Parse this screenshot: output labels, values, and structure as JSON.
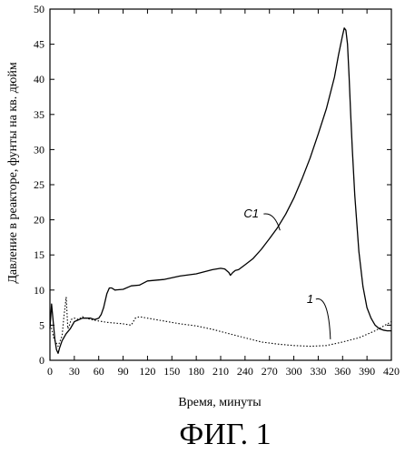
{
  "figure_label": "ФИГ. 1",
  "chart_data": {
    "type": "line",
    "title": "",
    "xlabel": "Время, минуты",
    "ylabel": "Давление в реакторе, фунты на кв. дюйм",
    "xlim": [
      0,
      420
    ],
    "ylim": [
      0,
      50
    ],
    "xticks": [
      0,
      30,
      60,
      90,
      120,
      150,
      180,
      210,
      240,
      270,
      300,
      330,
      360,
      390,
      420
    ],
    "yticks": [
      0,
      5,
      10,
      15,
      20,
      25,
      30,
      35,
      40,
      45,
      50
    ],
    "grid": false,
    "legend": "none",
    "series": [
      {
        "name": "C1",
        "style": "solid",
        "x": [
          0,
          2,
          4,
          6,
          8,
          10,
          12,
          15,
          20,
          25,
          30,
          40,
          50,
          55,
          60,
          63,
          66,
          70,
          73,
          76,
          80,
          90,
          100,
          110,
          120,
          140,
          160,
          180,
          200,
          210,
          215,
          220,
          222,
          225,
          228,
          232,
          240,
          250,
          260,
          270,
          280,
          290,
          300,
          310,
          320,
          330,
          340,
          350,
          355,
          360,
          362,
          364,
          366,
          368,
          370,
          372,
          375,
          380,
          385,
          390,
          395,
          400,
          405,
          410,
          415,
          420
        ],
        "y": [
          4.5,
          8.0,
          5.5,
          3.0,
          1.5,
          1.0,
          1.8,
          2.8,
          3.8,
          4.5,
          5.5,
          6.0,
          6.0,
          5.8,
          6.0,
          6.5,
          7.5,
          9.5,
          10.3,
          10.3,
          10.0,
          10.1,
          10.6,
          10.7,
          11.3,
          11.5,
          12.0,
          12.3,
          12.9,
          13.1,
          13.0,
          12.5,
          12.1,
          12.5,
          12.8,
          12.9,
          13.6,
          14.5,
          15.8,
          17.3,
          18.9,
          20.8,
          23.1,
          25.8,
          28.8,
          32.2,
          35.8,
          40.3,
          43.5,
          46.3,
          47.3,
          47.0,
          45.0,
          40.5,
          35.0,
          30.0,
          23.5,
          15.5,
          10.5,
          7.5,
          6.0,
          5.0,
          4.5,
          4.3,
          4.2,
          4.2
        ]
      },
      {
        "name": "1",
        "style": "dotted",
        "x": [
          0,
          5,
          10,
          15,
          17,
          20,
          22,
          24,
          26,
          30,
          35,
          40,
          50,
          60,
          70,
          80,
          90,
          100,
          105,
          110,
          120,
          140,
          160,
          180,
          200,
          220,
          240,
          260,
          280,
          300,
          320,
          340,
          360,
          380,
          400,
          420
        ],
        "y": [
          5.5,
          3.0,
          2.0,
          3.5,
          6.0,
          9.0,
          4.5,
          5.0,
          5.8,
          6.0,
          5.8,
          6.2,
          5.8,
          5.6,
          5.4,
          5.3,
          5.2,
          5.0,
          6.0,
          6.2,
          6.0,
          5.6,
          5.2,
          4.9,
          4.4,
          3.8,
          3.2,
          2.6,
          2.3,
          2.1,
          2.0,
          2.1,
          2.6,
          3.2,
          4.2,
          5.5
        ]
      }
    ],
    "annotations": [
      {
        "text": "C1",
        "series": "C1",
        "x": 283,
        "y": 18.5
      },
      {
        "text": "1",
        "series": "1",
        "x": 345,
        "y": 3.0
      }
    ]
  }
}
